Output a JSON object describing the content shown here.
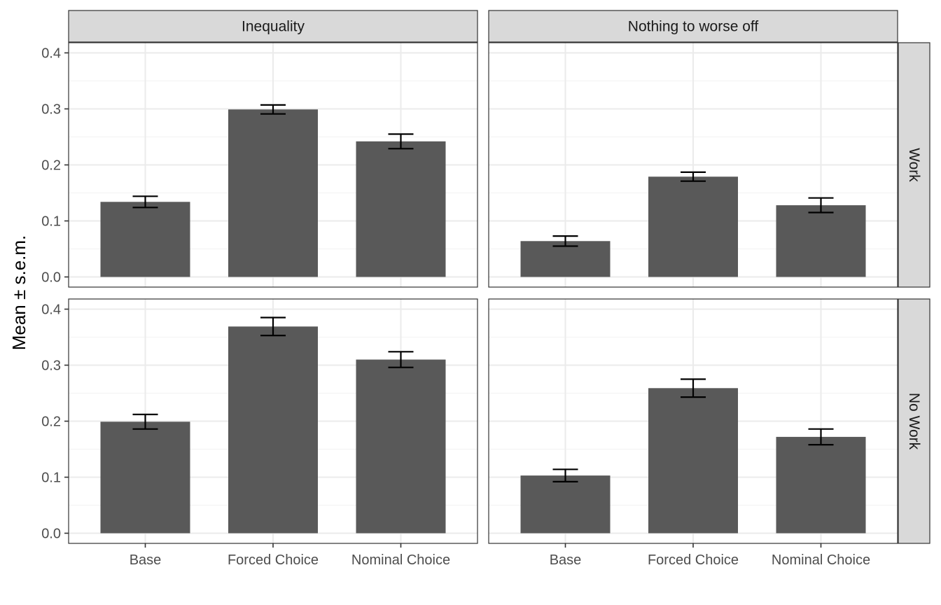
{
  "chart_data": {
    "type": "bar",
    "ylabel": "Mean ± s.e.m.",
    "xlabel": "",
    "ylim": [
      0,
      0.4
    ],
    "y_ticks": [
      "0.0",
      "0.1",
      "0.2",
      "0.3",
      "0.4"
    ],
    "categories": [
      "Base",
      "Forced Choice",
      "Nominal Choice"
    ],
    "column_facets": [
      "Inequality",
      "Nothing to worse off"
    ],
    "row_facets": [
      "Work",
      "No Work"
    ],
    "grid": true,
    "error_bars": "s.e.m.",
    "bar_color": "#595959",
    "panels": [
      {
        "column": "Inequality",
        "row": "Work",
        "values": [
          0.134,
          0.299,
          0.242
        ],
        "errors": [
          0.01,
          0.008,
          0.013
        ]
      },
      {
        "column": "Nothing to worse off",
        "row": "Work",
        "values": [
          0.064,
          0.179,
          0.128
        ],
        "errors": [
          0.009,
          0.008,
          0.013
        ]
      },
      {
        "column": "Inequality",
        "row": "No Work",
        "values": [
          0.199,
          0.369,
          0.31
        ],
        "errors": [
          0.013,
          0.016,
          0.014
        ]
      },
      {
        "column": "Nothing to worse off",
        "row": "No Work",
        "values": [
          0.103,
          0.259,
          0.172
        ],
        "errors": [
          0.011,
          0.016,
          0.014
        ]
      }
    ]
  }
}
